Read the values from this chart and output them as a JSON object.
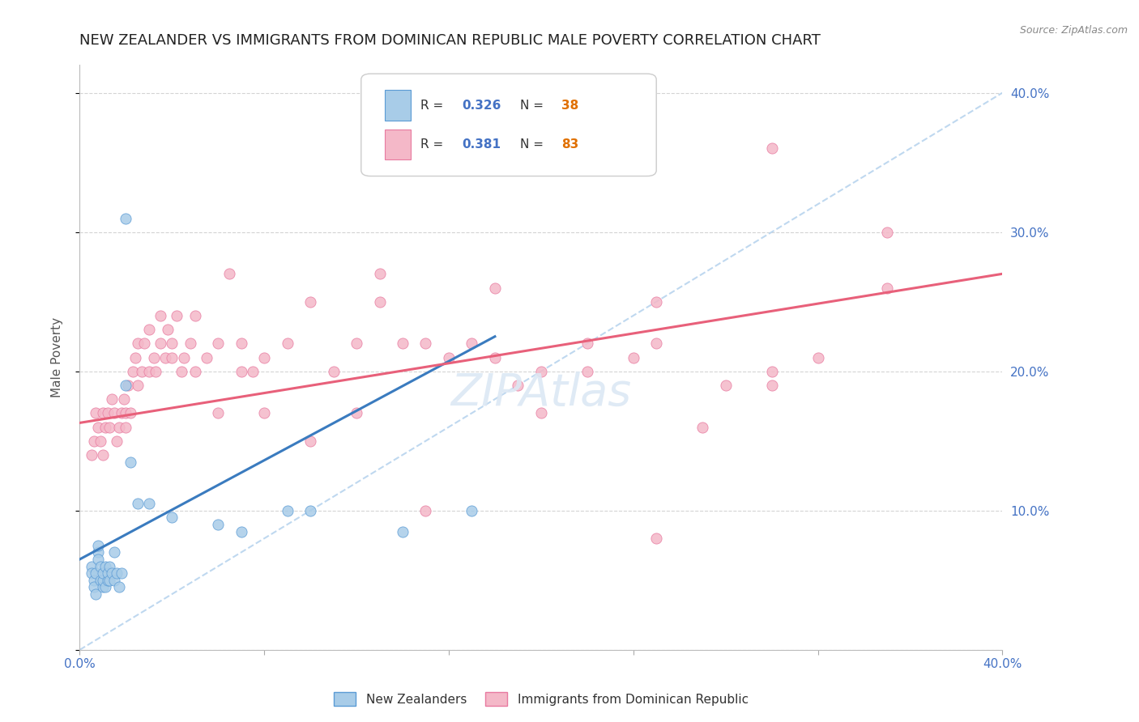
{
  "title": "NEW ZEALANDER VS IMMIGRANTS FROM DOMINICAN REPUBLIC MALE POVERTY CORRELATION CHART",
  "source": "Source: ZipAtlas.com",
  "ylabel": "Male Poverty",
  "xlim": [
    0.0,
    0.4
  ],
  "ylim": [
    0.0,
    0.42
  ],
  "x_ticks": [
    0.0,
    0.08,
    0.16,
    0.24,
    0.32,
    0.4
  ],
  "y_ticks": [
    0.0,
    0.1,
    0.2,
    0.3,
    0.4
  ],
  "nz_scatter_x": [
    0.005,
    0.005,
    0.006,
    0.006,
    0.007,
    0.007,
    0.008,
    0.008,
    0.008,
    0.009,
    0.009,
    0.01,
    0.01,
    0.01,
    0.011,
    0.011,
    0.012,
    0.012,
    0.013,
    0.013,
    0.014,
    0.015,
    0.015,
    0.016,
    0.017,
    0.018,
    0.02,
    0.022,
    0.025,
    0.03,
    0.04,
    0.06,
    0.07,
    0.09,
    0.1,
    0.14,
    0.17,
    0.02
  ],
  "nz_scatter_y": [
    0.06,
    0.055,
    0.05,
    0.045,
    0.04,
    0.055,
    0.07,
    0.065,
    0.075,
    0.05,
    0.06,
    0.045,
    0.05,
    0.055,
    0.06,
    0.045,
    0.05,
    0.055,
    0.05,
    0.06,
    0.055,
    0.05,
    0.07,
    0.055,
    0.045,
    0.055,
    0.19,
    0.135,
    0.105,
    0.105,
    0.095,
    0.09,
    0.085,
    0.1,
    0.1,
    0.085,
    0.1,
    0.31
  ],
  "dr_scatter_x": [
    0.005,
    0.006,
    0.007,
    0.008,
    0.009,
    0.01,
    0.01,
    0.011,
    0.012,
    0.013,
    0.014,
    0.015,
    0.016,
    0.017,
    0.018,
    0.019,
    0.02,
    0.02,
    0.021,
    0.022,
    0.023,
    0.024,
    0.025,
    0.025,
    0.027,
    0.028,
    0.03,
    0.03,
    0.032,
    0.033,
    0.035,
    0.035,
    0.037,
    0.038,
    0.04,
    0.04,
    0.042,
    0.044,
    0.045,
    0.048,
    0.05,
    0.05,
    0.055,
    0.06,
    0.065,
    0.07,
    0.075,
    0.08,
    0.09,
    0.1,
    0.11,
    0.12,
    0.13,
    0.14,
    0.15,
    0.16,
    0.17,
    0.18,
    0.19,
    0.2,
    0.22,
    0.24,
    0.25,
    0.28,
    0.3,
    0.32,
    0.35,
    0.25,
    0.3,
    0.2,
    0.15,
    0.12,
    0.1,
    0.08,
    0.07,
    0.06,
    0.13,
    0.18,
    0.22,
    0.27,
    0.3,
    0.35,
    0.25
  ],
  "dr_scatter_y": [
    0.14,
    0.15,
    0.17,
    0.16,
    0.15,
    0.14,
    0.17,
    0.16,
    0.17,
    0.16,
    0.18,
    0.17,
    0.15,
    0.16,
    0.17,
    0.18,
    0.17,
    0.16,
    0.19,
    0.17,
    0.2,
    0.21,
    0.19,
    0.22,
    0.2,
    0.22,
    0.2,
    0.23,
    0.21,
    0.2,
    0.22,
    0.24,
    0.21,
    0.23,
    0.21,
    0.22,
    0.24,
    0.2,
    0.21,
    0.22,
    0.2,
    0.24,
    0.21,
    0.22,
    0.27,
    0.22,
    0.2,
    0.21,
    0.22,
    0.25,
    0.2,
    0.22,
    0.27,
    0.22,
    0.22,
    0.21,
    0.22,
    0.26,
    0.19,
    0.2,
    0.22,
    0.21,
    0.22,
    0.19,
    0.2,
    0.21,
    0.26,
    0.08,
    0.36,
    0.17,
    0.1,
    0.17,
    0.15,
    0.17,
    0.2,
    0.17,
    0.25,
    0.21,
    0.2,
    0.16,
    0.19,
    0.3,
    0.25
  ],
  "nz_color": "#a8cce8",
  "nz_edge_color": "#5b9bd5",
  "dr_color": "#f4b8c8",
  "dr_edge_color": "#e87aa0",
  "nz_trend_color": "#3a7bbf",
  "dr_trend_color": "#e8607a",
  "ref_line_color": "#b8d4ee",
  "background_color": "#ffffff",
  "grid_color": "#d0d0d0",
  "title_fontsize": 13,
  "axis_label_fontsize": 11,
  "tick_fontsize": 11,
  "right_tick_color": "#4472c4",
  "watermark_color": "#dce8f4",
  "nz_trend_start_x": 0.0,
  "nz_trend_start_y": 0.065,
  "nz_trend_end_x": 0.18,
  "nz_trend_end_y": 0.225,
  "dr_trend_start_x": 0.0,
  "dr_trend_start_y": 0.163,
  "dr_trend_end_x": 0.4,
  "dr_trend_end_y": 0.27
}
